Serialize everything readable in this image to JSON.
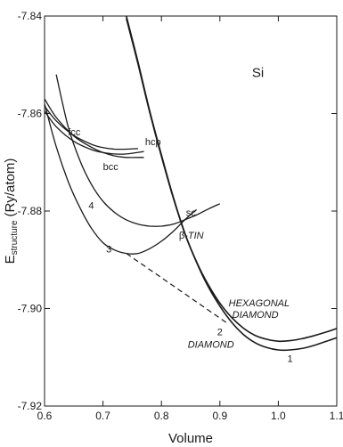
{
  "chart_data": {
    "type": "line",
    "title": "",
    "element_label": "Si",
    "xlabel": "Volume",
    "ylabel_main": "E",
    "ylabel_sub": "structure",
    "ylabel_unit": "(Ry/atom)",
    "xlim": [
      0.6,
      1.1
    ],
    "ylim": [
      -7.92,
      -7.84
    ],
    "x_ticks": [
      0.6,
      0.7,
      0.8,
      0.9,
      1.0,
      1.1
    ],
    "x_tick_labels": [
      "0.6",
      "0.7",
      "0.8",
      "0.9",
      "1.0",
      "1.1"
    ],
    "y_ticks": [
      -7.84,
      -7.86,
      -7.88,
      -7.9,
      -7.92
    ],
    "y_tick_labels": [
      "-7.84",
      "-7.86",
      "-7.88",
      "-7.90",
      "-7.92"
    ],
    "grid": false,
    "series": [
      {
        "name": "fcc",
        "x": [
          0.6,
          0.62,
          0.65,
          0.68,
          0.7,
          0.72,
          0.74,
          0.76
        ],
        "y": [
          -7.8585,
          -7.8615,
          -7.8645,
          -7.8663,
          -7.867,
          -7.8673,
          -7.8673,
          -7.8672
        ]
      },
      {
        "name": "hcp",
        "x": [
          0.6,
          0.62,
          0.65,
          0.68,
          0.7,
          0.72,
          0.74,
          0.77
        ],
        "y": [
          -7.8595,
          -7.8627,
          -7.8657,
          -7.8674,
          -7.868,
          -7.8683,
          -7.8683,
          -7.8678
        ]
      },
      {
        "name": "bcc",
        "x": [
          0.6,
          0.62,
          0.65,
          0.68,
          0.7,
          0.72,
          0.74,
          0.77
        ],
        "y": [
          -7.857,
          -7.8608,
          -7.8646,
          -7.8669,
          -7.868,
          -7.8687,
          -7.869,
          -7.869
        ]
      },
      {
        "name": "sc",
        "x": [
          0.62,
          0.64,
          0.66,
          0.68,
          0.7,
          0.72,
          0.74,
          0.76,
          0.78,
          0.8,
          0.82,
          0.84,
          0.86,
          0.88,
          0.9
        ],
        "y": [
          -7.852,
          -7.8625,
          -7.8695,
          -7.8745,
          -7.878,
          -7.8803,
          -7.8818,
          -7.8827,
          -7.8831,
          -7.8831,
          -7.8827,
          -7.8818,
          -7.8808,
          -7.8796,
          -7.8785
        ]
      },
      {
        "name": "β-TIN",
        "x": [
          0.6,
          0.62,
          0.64,
          0.66,
          0.68,
          0.7,
          0.72,
          0.74,
          0.76,
          0.78,
          0.8,
          0.82,
          0.84,
          0.86
        ],
        "y": [
          -7.858,
          -7.8668,
          -7.8738,
          -7.8792,
          -7.8835,
          -7.8865,
          -7.888,
          -7.8887,
          -7.8887,
          -7.8877,
          -7.8862,
          -7.8842,
          -7.8818,
          -7.8797
        ]
      },
      {
        "name": "DIAMOND",
        "x": [
          0.74,
          0.76,
          0.78,
          0.8,
          0.82,
          0.84,
          0.86,
          0.88,
          0.9,
          0.92,
          0.94,
          0.96,
          0.98,
          1.0,
          1.02,
          1.04,
          1.06,
          1.08,
          1.1
        ],
        "y": [
          -7.84,
          -7.8495,
          -7.8595,
          -7.8685,
          -7.877,
          -7.8845,
          -7.8905,
          -7.8955,
          -7.8995,
          -7.9028,
          -7.9053,
          -7.907,
          -7.908,
          -7.9085,
          -7.9085,
          -7.9082,
          -7.9076,
          -7.9068,
          -7.906
        ]
      },
      {
        "name": "HEXAGONAL DIAMOND",
        "x": [
          0.74,
          0.76,
          0.78,
          0.8,
          0.82,
          0.84,
          0.86,
          0.88,
          0.9,
          0.92,
          0.94,
          0.96,
          0.98,
          1.0,
          1.02,
          1.04,
          1.06,
          1.08,
          1.1
        ],
        "y": [
          -7.8405,
          -7.8499,
          -7.8598,
          -7.8688,
          -7.8772,
          -7.8846,
          -7.8904,
          -7.8951,
          -7.8989,
          -7.9018,
          -7.904,
          -7.9055,
          -7.9063,
          -7.9067,
          -7.9066,
          -7.9062,
          -7.9056,
          -7.9049,
          -7.9041
        ]
      }
    ],
    "common_tangent": {
      "x": [
        0.74,
        0.915
      ],
      "y": [
        -7.8887,
        -7.9032
      ]
    },
    "annotations": [
      {
        "text": "1",
        "x": 1.02,
        "y": -7.911
      },
      {
        "text": "2",
        "x": 0.9,
        "y": -7.9055
      },
      {
        "text": "3",
        "x": 0.71,
        "y": -7.8885
      },
      {
        "text": "4",
        "x": 0.68,
        "y": -7.8795
      }
    ]
  }
}
